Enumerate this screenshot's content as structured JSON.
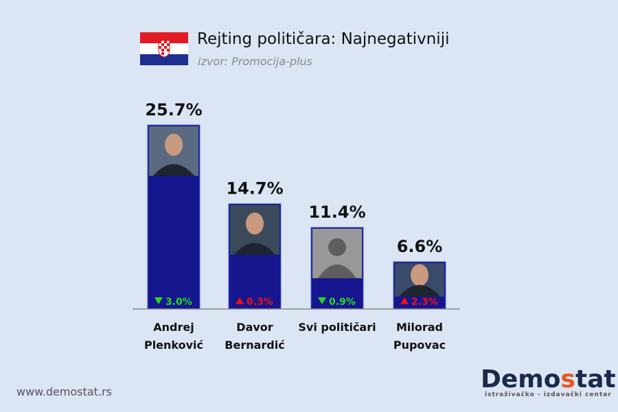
{
  "header": {
    "title": "Rejting političara: Najnegativniji",
    "source": "izvor: Promocija-plus"
  },
  "chart_data": {
    "type": "bar",
    "title": "Rejting političara: Najnegativniji",
    "categories": [
      [
        "Andrej",
        "Plenković"
      ],
      [
        "Davor",
        "Bernardić"
      ],
      [
        "Svi političari"
      ],
      [
        "Milorad",
        "Pupovac"
      ]
    ],
    "values": [
      25.7,
      14.7,
      11.4,
      6.6
    ],
    "value_labels": [
      "25.7%",
      "14.7%",
      "11.4%",
      "6.6%"
    ],
    "changes": [
      {
        "direction": "down",
        "label": "3.0%",
        "color": "#22dd22"
      },
      {
        "direction": "up",
        "label": "0.3%",
        "color": "#ee1111"
      },
      {
        "direction": "down",
        "label": "0.9%",
        "color": "#22dd22"
      },
      {
        "direction": "up",
        "label": "2.3%",
        "color": "#ee1111"
      }
    ],
    "bar_color": "#16168f",
    "ylim": [
      0,
      26
    ]
  },
  "footer": {
    "website": "www.demostat.rs",
    "logo_a": "Demo",
    "logo_b": "s",
    "logo_c": "tat",
    "tagline": "istraživačko - izdavački centar"
  }
}
